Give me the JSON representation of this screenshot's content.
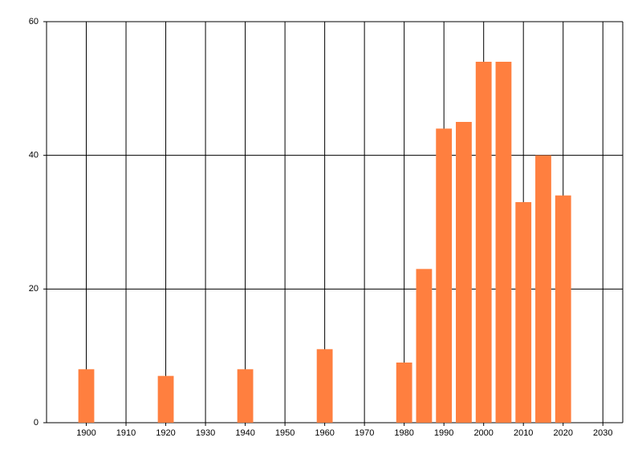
{
  "chart_data": {
    "type": "bar",
    "x": [
      1900,
      1920,
      1940,
      1960,
      1980,
      1985,
      1990,
      1995,
      2000,
      2005,
      2010,
      2015,
      2020
    ],
    "values": [
      8,
      7,
      8,
      11,
      9,
      23,
      44,
      45,
      54,
      54,
      33,
      40,
      34
    ],
    "color": "#ff7f3f",
    "xlim": [
      1890,
      2035
    ],
    "xticks": [
      1900,
      1910,
      1920,
      1930,
      1940,
      1950,
      1960,
      1970,
      1980,
      1990,
      2000,
      2010,
      2020,
      2030
    ],
    "ylim": [
      0,
      60
    ],
    "yticks": [
      0,
      20,
      40,
      60
    ],
    "grid": true
  }
}
